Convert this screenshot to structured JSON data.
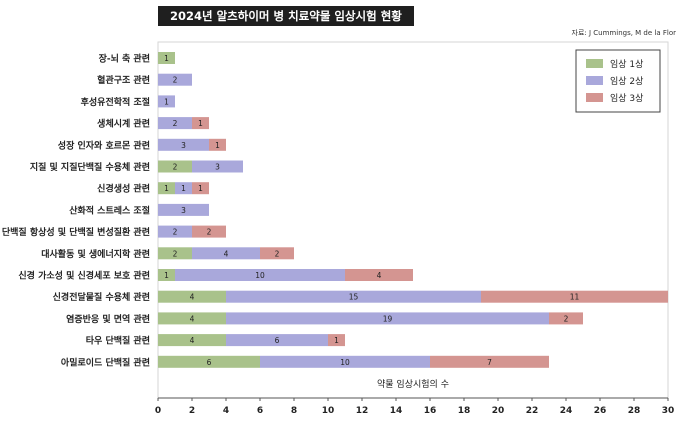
{
  "title": "2024년 알츠하이머 병 치료약물 임상시험 현황",
  "source": "자료: J Cummings, M de la Flor",
  "colors": {
    "phase1": "#a9c28b",
    "phase2": "#a9a8db",
    "phase3": "#d49591",
    "frame": "#d6d6d6"
  },
  "chart_data": {
    "type": "bar",
    "orientation": "horizontal",
    "stacked": true,
    "title": "2024년 알츠하이머 병 치료약물 임상시험 현황",
    "xlabel": "약물 임상시험의 수",
    "ylabel": "",
    "xlim": [
      0,
      30
    ],
    "xticks": [
      0,
      2,
      4,
      6,
      8,
      10,
      12,
      14,
      16,
      18,
      20,
      22,
      24,
      26,
      28,
      30
    ],
    "legend_position": "top-right",
    "categories": [
      "장-뇌 축 관련",
      "혈관구조 관련",
      "후성유전학적 조절",
      "생체시계 관련",
      "성장 인자와 호르몬 관련",
      "지질 및 지질단백질 수용체 관련",
      "신경생성 관련",
      "산화적 스트레스 조절",
      "단백질 항상성 및 단백질 변성질환 관련",
      "대사활동 및 생에너지학 관련",
      "신경 가소성 및 신경세포 보호 관련",
      "신경전달물질 수용체 관련",
      "염증반응 및 면역 관련",
      "타우 단백질 관련",
      "아밀로이드 단백질 관련"
    ],
    "series": [
      {
        "name": "임상 1상",
        "values": [
          1,
          0,
          0,
          0,
          0,
          2,
          1,
          0,
          0,
          2,
          1,
          4,
          4,
          4,
          6
        ]
      },
      {
        "name": "임상 2상",
        "values": [
          0,
          2,
          1,
          2,
          3,
          3,
          1,
          3,
          2,
          4,
          10,
          15,
          19,
          6,
          10
        ]
      },
      {
        "name": "임상 3상",
        "values": [
          0,
          0,
          0,
          1,
          1,
          0,
          1,
          0,
          2,
          2,
          4,
          11,
          2,
          1,
          7
        ]
      }
    ]
  }
}
